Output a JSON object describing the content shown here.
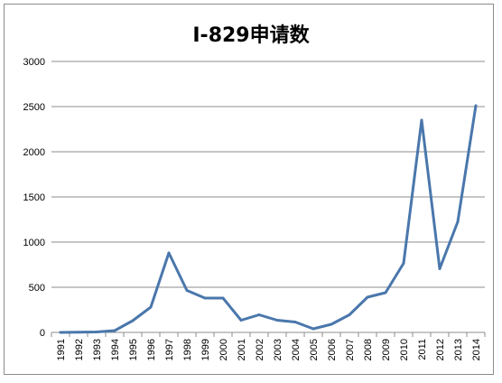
{
  "chart_data": {
    "type": "line",
    "title": "I-829申请数",
    "xlabel": "",
    "ylabel": "",
    "categories": [
      "1991",
      "1992",
      "1993",
      "1994",
      "1995",
      "1996",
      "1997",
      "1998",
      "1999",
      "2000",
      "2001",
      "2002",
      "2003",
      "2004",
      "2005",
      "2006",
      "2007",
      "2008",
      "2009",
      "2010",
      "2011",
      "2012",
      "2013",
      "2014"
    ],
    "series": [
      {
        "values": [
          0,
          2,
          5,
          20,
          130,
          280,
          880,
          465,
          380,
          380,
          135,
          195,
          135,
          115,
          40,
          90,
          195,
          390,
          440,
          765,
          2350,
          705,
          1225,
          2510
        ]
      }
    ],
    "y_ticks": [
      0,
      500,
      1000,
      1500,
      2000,
      2500,
      3000
    ],
    "ylim": [
      0,
      3000
    ],
    "grid": true,
    "legend": "none",
    "line_color": "#4a77ac",
    "grid_color": "#8c8c8c"
  }
}
